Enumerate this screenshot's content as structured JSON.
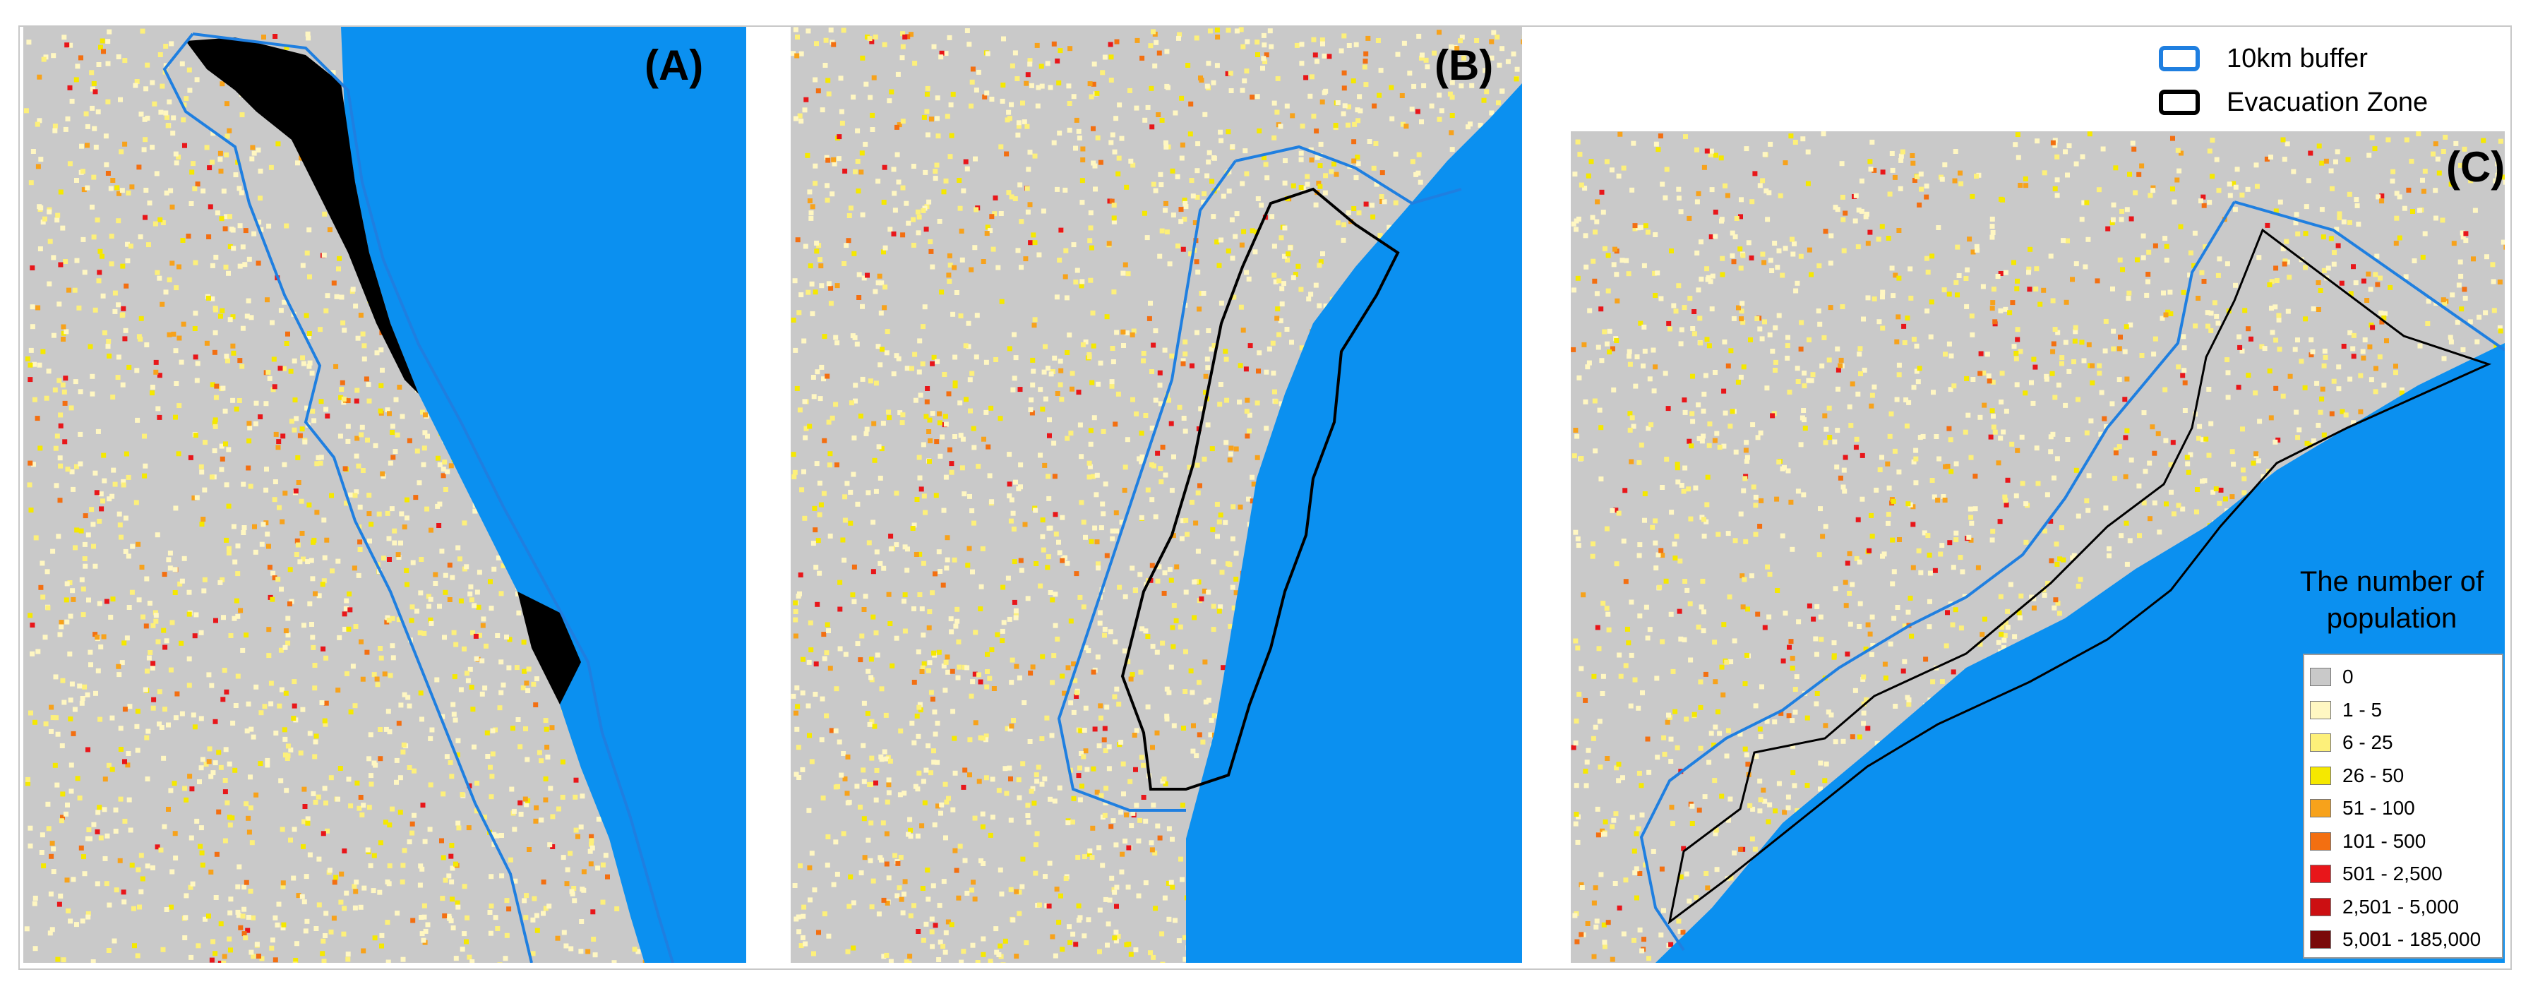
{
  "panels": [
    {
      "id": "a",
      "label": "(A)"
    },
    {
      "id": "b",
      "label": "(B)"
    },
    {
      "id": "c",
      "label": "(C)"
    }
  ],
  "legend": {
    "buffer_label": "10km buffer",
    "buffer_color": "#1f7fe0",
    "zone_label": "Evacuation Zone",
    "zone_color": "#000000"
  },
  "population_legend": {
    "title_line1": "The number of",
    "title_line2": "population",
    "classes": [
      {
        "label": "0",
        "color": "#c9c9c9"
      },
      {
        "label": "1 - 5",
        "color": "#fff7c2"
      },
      {
        "label": "6 - 25",
        "color": "#fdf07a"
      },
      {
        "label": "26 - 50",
        "color": "#f5e800"
      },
      {
        "label": "51 - 100",
        "color": "#f7a21b"
      },
      {
        "label": "101 - 500",
        "color": "#f36f11"
      },
      {
        "label": "501 - 2,500",
        "color": "#e8161a"
      },
      {
        "label": "2,501 - 5,000",
        "color": "#cc0f12"
      },
      {
        "label": "5,001 - 185,000",
        "color": "#7a0a0a"
      }
    ]
  },
  "colors": {
    "water": "#0b90f0",
    "land": "#c9c9c9"
  }
}
